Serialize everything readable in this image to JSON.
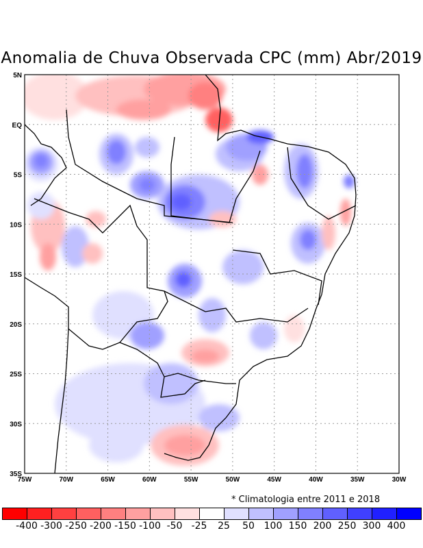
{
  "title": "Anomalia de Chuva Observada CPC (mm) Abr/2019",
  "note": "* Climatologia entre 2011 e 2018",
  "lat_labels": [
    "5N",
    "EQ",
    "5S",
    "10S",
    "15S",
    "20S",
    "25S",
    "30S",
    "35S"
  ],
  "lon_labels": [
    "75W",
    "70W",
    "65W",
    "60W",
    "55W",
    "50W",
    "45W",
    "40W",
    "35W",
    "30W"
  ],
  "colorbar": {
    "labels": [
      "-400",
      "-300",
      "-250",
      "-200",
      "-150",
      "-100",
      "-50",
      "-25",
      "25",
      "50",
      "100",
      "150",
      "200",
      "250",
      "300",
      "400"
    ],
    "colors": [
      "#ff0000",
      "#ff2020",
      "#ff4040",
      "#ff6060",
      "#ff8080",
      "#ffa0a0",
      "#ffc0c0",
      "#ffe0e0",
      "#ffffff",
      "#e0e0ff",
      "#c0c0ff",
      "#a0a0ff",
      "#8080ff",
      "#6060ff",
      "#4040ff",
      "#2020ff",
      "#0000ff"
    ]
  }
}
